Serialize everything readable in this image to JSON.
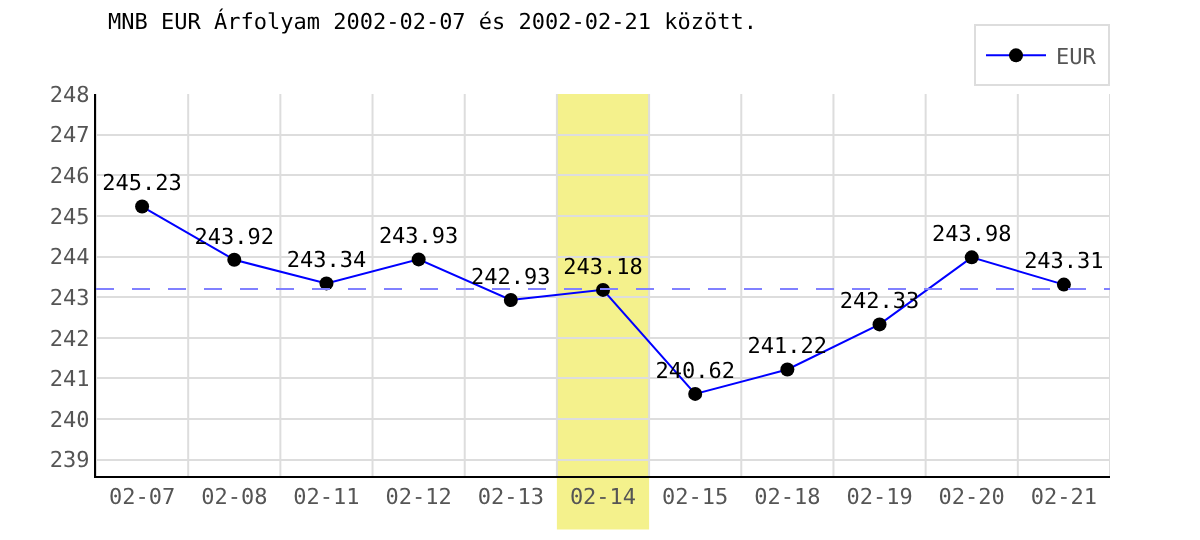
{
  "chart_data": {
    "type": "line",
    "title": "MNB EUR Árfolyam 2002-02-07 és 2002-02-21 között.",
    "categories": [
      "02-07",
      "02-08",
      "02-11",
      "02-12",
      "02-13",
      "02-14",
      "02-15",
      "02-18",
      "02-19",
      "02-20",
      "02-21"
    ],
    "series": [
      {
        "name": "EUR",
        "color": "#0000ff",
        "values": [
          245.23,
          243.92,
          243.34,
          243.93,
          242.93,
          243.18,
          240.62,
          241.22,
          242.33,
          243.98,
          243.31
        ]
      }
    ],
    "ylim": [
      238.6,
      248
    ],
    "yticks": [
      239,
      240,
      241,
      242,
      243,
      244,
      245,
      246,
      247,
      248
    ],
    "ref_lines": [
      {
        "axis": "y",
        "value": 243.2,
        "color": "#8080ff",
        "line_style": "dashed"
      }
    ],
    "bands": [
      {
        "axis": "x",
        "from": "02-14",
        "to": "02-14",
        "color": "#f3ef80"
      }
    ],
    "data_labels": true,
    "grid": true,
    "legend": "top right",
    "marker": "circle",
    "line_style": "solid"
  }
}
